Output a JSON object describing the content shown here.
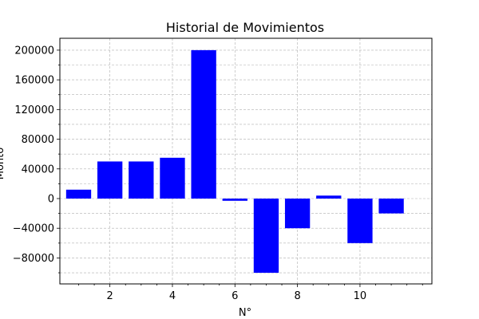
{
  "chart_data": {
    "type": "bar",
    "title": "Historial de Movimientos",
    "xlabel": "N°",
    "ylabel": "Monto",
    "x": [
      1,
      2,
      3,
      4,
      5,
      6,
      7,
      8,
      9,
      10,
      11
    ],
    "values": [
      12000,
      50000,
      50000,
      55000,
      200000,
      -3000,
      -100000,
      -40000,
      4000,
      -60000,
      -20000
    ],
    "bar_color": "#0000ff",
    "xlim": [
      0.4,
      12.3
    ],
    "ylim": [
      -115000,
      216000
    ],
    "x_ticks": [
      2,
      4,
      6,
      8,
      10
    ],
    "x_tick_labels": [
      "2",
      "4",
      "6",
      "8",
      "10"
    ],
    "y_ticks": [
      -80000,
      -40000,
      0,
      40000,
      80000,
      120000,
      160000,
      200000
    ],
    "y_tick_labels": [
      "−80000",
      "−40000",
      "0",
      "40000",
      "80000",
      "120000",
      "160000",
      "200000"
    ],
    "grid": true,
    "grid_color": "#b0b0b0"
  }
}
